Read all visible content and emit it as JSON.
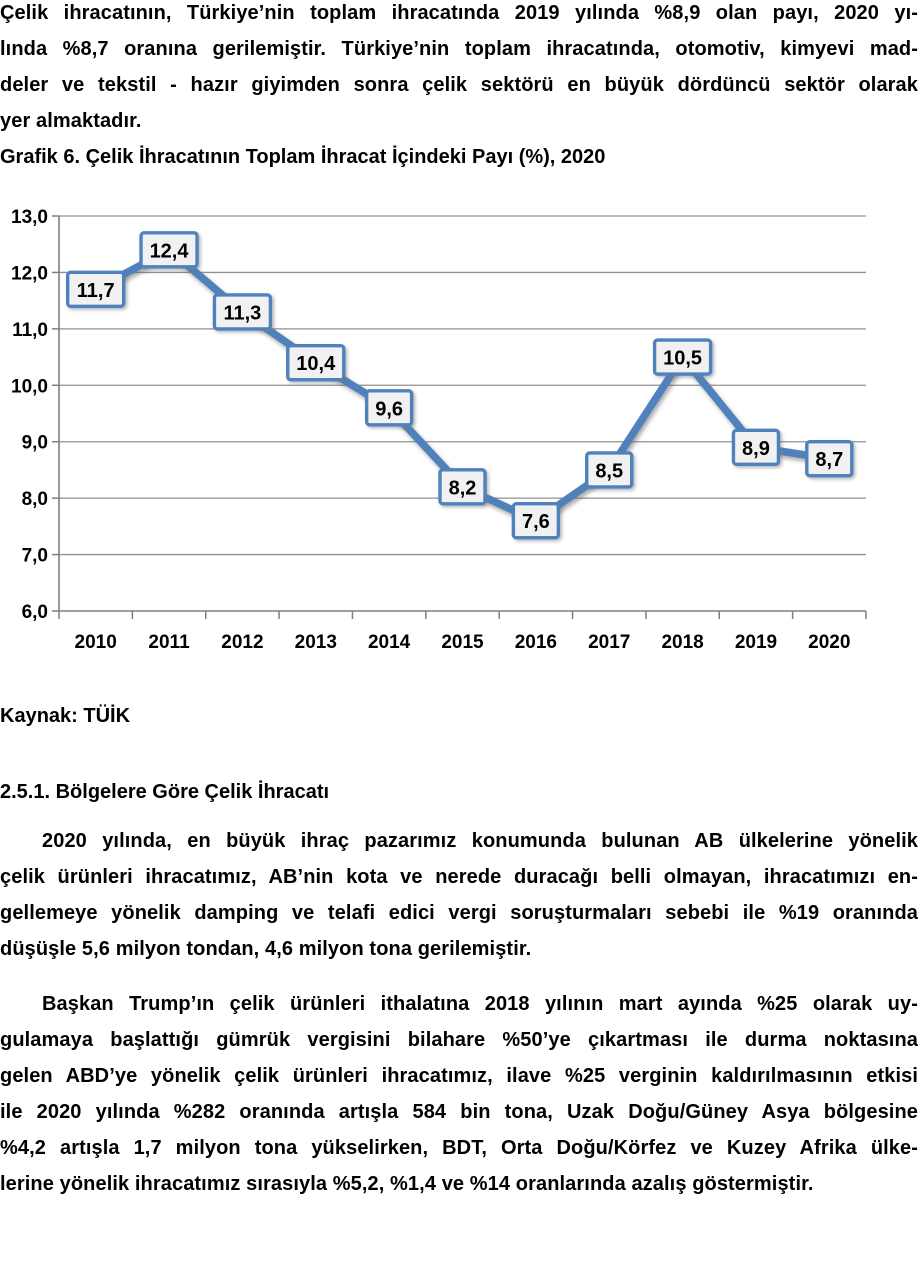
{
  "page": {
    "intro_paragraph": {
      "lines": [
        "Çelik ihracatının, Türkiye’nin toplam ihracatında 2019 yılında %8,9 olan payı, 2020 yı-",
        "lında %8,7 oranına gerilemiştir. Türkiye’nin toplam ihracatında, otomotiv, kimyevi mad-",
        "deler ve tekstil - hazır giyimden sonra çelik sektörü en büyük dördüncü sektör olarak",
        "yer almaktadır."
      ]
    },
    "chart_heading": "Grafik 6. Çelik İhracatının Toplam İhracat İçindeki Payı (%), 2020",
    "source_note": "Kaynak: TÜİK",
    "section_heading": "2.5.1. Bölgelere Göre Çelik İhracatı",
    "regions_paragraph": {
      "lines": [
        "2020 yılında, en büyük ihraç pazarımız konumunda bulunan AB ülkelerine yönelik",
        "çelik ürünleri ihracatımız, AB’nin kota ve nerede duracağı belli olmayan, ihracatımızı en-",
        "gellemeye yönelik damping ve telafi edici vergi soruşturmaları sebebi ile %19 oranında",
        "düşüşle 5,6 milyon tondan, 4,6 milyon tona gerilemiştir."
      ]
    },
    "usa_paragraph": {
      "lines": [
        "Başkan Trump’ın çelik ürünleri ithalatına 2018 yılının mart ayında %25 olarak uy-",
        "gulamaya başlattığı gümrük vergisini bilahare %50’ye çıkartması ile durma noktasına",
        "gelen ABD’ye yönelik çelik ürünleri ihracatımız, ilave %25 verginin kaldırılmasının etkisi",
        "ile 2020 yılında %282 oranında artışla 584 bin tona, Uzak Doğu/Güney Asya bölgesine",
        "%4,2 artışla 1,7 milyon tona yükselirken, BDT, Orta Doğu/Körfez ve Kuzey Afrika ülke-",
        "lerine yönelik ihracatımız sırasıyla %5,2, %1,4 ve %14 oranlarında azalış göstermiştir."
      ]
    }
  },
  "chart_data": {
    "type": "line",
    "title": "Grafik 6. Çelik İhracatının Toplam İhracat İçindeki Payı (%), 2020",
    "categories": [
      "2010",
      "2011",
      "2012",
      "2013",
      "2014",
      "2015",
      "2016",
      "2017",
      "2018",
      "2019",
      "2020"
    ],
    "values": [
      11.7,
      12.4,
      11.3,
      10.4,
      9.6,
      8.2,
      7.6,
      8.5,
      10.5,
      8.9,
      8.7
    ],
    "value_labels": [
      "11,7",
      "12,4",
      "11,3",
      "10,4",
      "9,6",
      "8,2",
      "7,6",
      "8,5",
      "10,5",
      "8,9",
      "8,7"
    ],
    "xlabel": "",
    "ylabel": "",
    "ylim": [
      6.0,
      13.0
    ],
    "ytick_step": 1.0,
    "ytick_labels": [
      "6,0",
      "7,0",
      "8,0",
      "9,0",
      "10,0",
      "11,0",
      "12,0",
      "13,0"
    ],
    "grid": true,
    "legend_position": "none",
    "colors": {
      "line": "#4F81BD",
      "label_box_fill": "#F1F1F1",
      "label_box_border": "#4F81BD",
      "gridline": "#909090",
      "axis": "#7F7F7F",
      "text": "#000000"
    }
  }
}
